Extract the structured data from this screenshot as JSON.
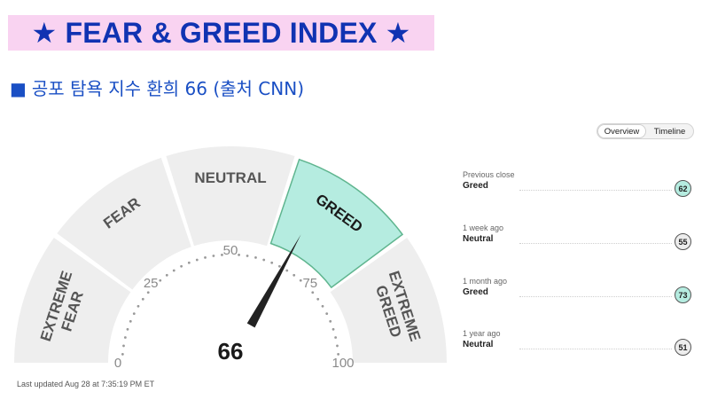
{
  "banner": {
    "title": "★ FEAR & GREED INDEX ★"
  },
  "subtitle": {
    "bullet": "■",
    "text": "공포 탐욕 지수 환희 66 (출처 CNN)"
  },
  "toggle": {
    "overview": "Overview",
    "timeline": "Timeline",
    "active": "Overview"
  },
  "gauge": {
    "value": "66",
    "needle_value": 66,
    "segments": [
      {
        "line1": "EXTREME",
        "line2": "FEAR"
      },
      {
        "line1": "FEAR",
        "line2": ""
      },
      {
        "line1": "NEUTRAL",
        "line2": ""
      },
      {
        "line1": "GREED",
        "line2": "",
        "selected": true
      },
      {
        "line1": "EXTREME",
        "line2": "GREED"
      }
    ],
    "scale": [
      "0",
      "25",
      "50",
      "75",
      "100"
    ],
    "colors": {
      "segment": "#eeeeee",
      "selected": "#b5ece0",
      "selected_border": "#5fb58f",
      "needle": "#222222"
    }
  },
  "history": [
    {
      "label": "Previous close",
      "rating": "Greed",
      "value": "62",
      "kind": "greed"
    },
    {
      "label": "1 week ago",
      "rating": "Neutral",
      "value": "55",
      "kind": "neutral"
    },
    {
      "label": "1 month ago",
      "rating": "Greed",
      "value": "73",
      "kind": "greed"
    },
    {
      "label": "1 year ago",
      "rating": "Neutral",
      "value": "51",
      "kind": "neutral"
    }
  ],
  "updated": "Last updated Aug 28 at 7:35:19 PM ET"
}
